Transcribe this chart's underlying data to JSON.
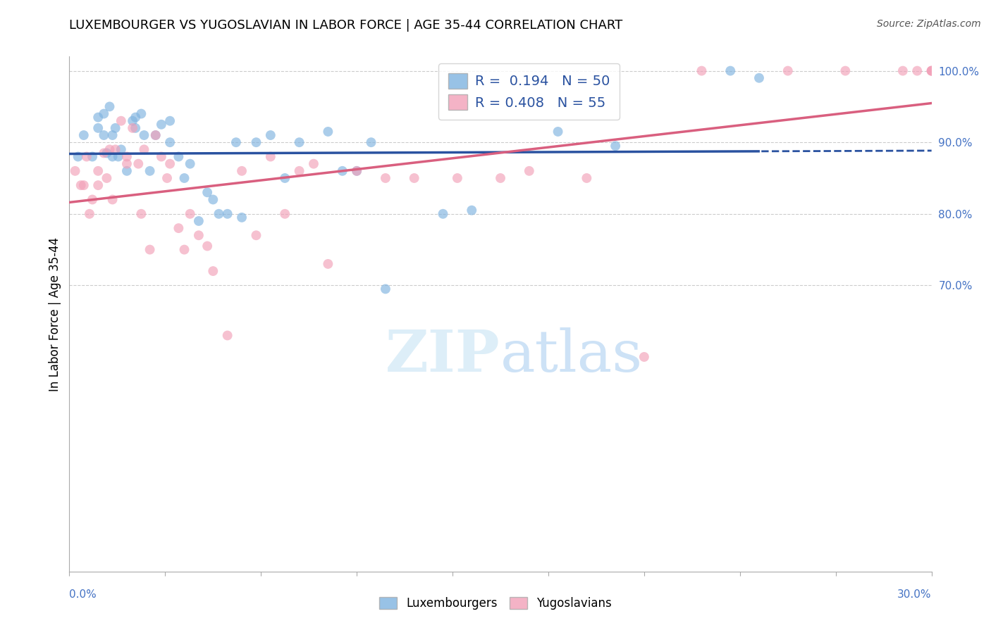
{
  "title": "LUXEMBOURGER VS YUGOSLAVIAN IN LABOR FORCE | AGE 35-44 CORRELATION CHART",
  "source": "Source: ZipAtlas.com",
  "ylabel": "In Labor Force | Age 35-44",
  "xlim": [
    0.0,
    30.0
  ],
  "ylim": [
    30.0,
    102.0
  ],
  "legend_blue_R": "0.194",
  "legend_blue_N": "50",
  "legend_pink_R": "0.408",
  "legend_pink_N": "55",
  "blue_color": "#7fb3e0",
  "pink_color": "#f2a0b8",
  "blue_line_color": "#2a52a0",
  "pink_line_color": "#d95f7f",
  "grid_color": "#cccccc",
  "watermark_color": "#ddeef8",
  "blue_x": [
    0.3,
    0.5,
    0.8,
    1.0,
    1.0,
    1.2,
    1.2,
    1.3,
    1.4,
    1.5,
    1.5,
    1.6,
    1.7,
    1.8,
    2.0,
    2.2,
    2.3,
    2.3,
    2.5,
    2.6,
    2.8,
    3.0,
    3.2,
    3.5,
    3.5,
    3.8,
    4.0,
    4.2,
    4.5,
    4.8,
    5.0,
    5.2,
    5.5,
    5.8,
    6.0,
    6.5,
    7.0,
    7.5,
    8.0,
    9.0,
    9.5,
    10.0,
    10.5,
    11.0,
    13.0,
    14.0,
    17.0,
    19.0,
    23.0,
    24.0
  ],
  "blue_y": [
    88.0,
    91.0,
    88.0,
    92.0,
    93.5,
    94.0,
    91.0,
    88.5,
    95.0,
    91.0,
    88.0,
    92.0,
    88.0,
    89.0,
    86.0,
    93.0,
    92.0,
    93.5,
    94.0,
    91.0,
    86.0,
    91.0,
    92.5,
    90.0,
    93.0,
    88.0,
    85.0,
    87.0,
    79.0,
    83.0,
    82.0,
    80.0,
    80.0,
    90.0,
    79.5,
    90.0,
    91.0,
    85.0,
    90.0,
    91.5,
    86.0,
    86.0,
    90.0,
    69.5,
    80.0,
    80.5,
    91.5,
    89.5,
    100.0,
    99.0
  ],
  "pink_x": [
    0.2,
    0.4,
    0.5,
    0.6,
    0.7,
    0.8,
    1.0,
    1.0,
    1.2,
    1.3,
    1.4,
    1.5,
    1.6,
    1.8,
    2.0,
    2.0,
    2.2,
    2.4,
    2.5,
    2.6,
    2.8,
    3.0,
    3.2,
    3.4,
    3.5,
    3.8,
    4.0,
    4.2,
    4.5,
    4.8,
    5.0,
    5.5,
    6.0,
    6.5,
    7.0,
    7.5,
    8.0,
    8.5,
    9.0,
    10.0,
    11.0,
    12.0,
    13.5,
    15.0,
    16.0,
    18.0,
    20.0,
    22.0,
    25.0,
    27.0,
    29.0,
    29.5,
    30.0,
    30.0,
    30.0
  ],
  "pink_y": [
    86.0,
    84.0,
    84.0,
    88.0,
    80.0,
    82.0,
    86.0,
    84.0,
    88.5,
    85.0,
    89.0,
    82.0,
    89.0,
    93.0,
    87.0,
    88.0,
    92.0,
    87.0,
    80.0,
    89.0,
    75.0,
    91.0,
    88.0,
    85.0,
    87.0,
    78.0,
    75.0,
    80.0,
    77.0,
    75.5,
    72.0,
    63.0,
    86.0,
    77.0,
    88.0,
    80.0,
    86.0,
    87.0,
    73.0,
    86.0,
    85.0,
    85.0,
    85.0,
    85.0,
    86.0,
    85.0,
    60.0,
    100.0,
    100.0,
    100.0,
    100.0,
    100.0,
    100.0,
    100.0,
    100.0
  ],
  "right_yticks": [
    70.0,
    80.0,
    90.0,
    100.0
  ],
  "right_yticklabels": [
    "70.0%",
    "80.0%",
    "90.0%",
    "100.0%"
  ],
  "xtick_positions": [
    0.0,
    3.33,
    6.67,
    10.0,
    13.33,
    16.67,
    20.0,
    23.33,
    26.67,
    30.0
  ]
}
